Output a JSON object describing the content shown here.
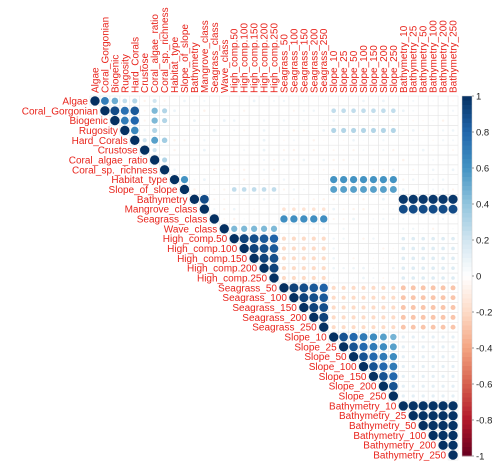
{
  "chart_data": {
    "type": "heatmap",
    "style": "circle-correlogram (upper triangle)",
    "title": "",
    "variables": [
      "Algae",
      "Coral_Gorgonian",
      "Biogenic",
      "Rugosity",
      "Hard_Corals",
      "Crustose",
      "Coral_algae_ratio",
      "Coral_sp._richness",
      "Habitat_type",
      "Slope_of_slope",
      "Bathymetry",
      "Mangrove_class",
      "Seagrass_class",
      "Wave_class",
      "High_comp.50",
      "High_comp.100",
      "High_comp.150",
      "High_comp.200",
      "High_comp.250",
      "Seagrass_50",
      "Seagrass_100",
      "Seagrass_150",
      "Seagrass_200",
      "Seagrass_250",
      "Slope_10",
      "Slope_25",
      "Slope_50",
      "Slope_100",
      "Slope_150",
      "Slope_200",
      "Slope_250",
      "Bathymetry_10",
      "Bathymetry_25",
      "Bathymetry_50",
      "Bathymetry_100",
      "Bathymetry_200",
      "Bathymetry_250"
    ],
    "color_scale": {
      "range": [
        -1,
        1
      ],
      "ticks": [
        "1",
        "0.8",
        "0.6",
        "0.4",
        "0.2",
        "0",
        "-0.2",
        "-0.4",
        "-0.6",
        "-0.8",
        "-1"
      ],
      "colors": [
        "#67001f",
        "#b2182b",
        "#d6604d",
        "#f4a582",
        "#fddbc7",
        "#ffffff",
        "#d1e5f0",
        "#92c5de",
        "#4393c3",
        "#2166ac",
        "#053061"
      ]
    },
    "correlations_summary": [
      {
        "a": "Algae",
        "b": "Coral_Gorgonian",
        "r": 0.7
      },
      {
        "a": "Algae",
        "b": "Biogenic",
        "r": 0.5
      },
      {
        "a": "Coral_Gorgonian",
        "b": "Biogenic",
        "r": 0.9
      },
      {
        "a": "Coral_Gorgonian",
        "b": "Rugosity",
        "r": 0.75
      },
      {
        "a": "Coral_Gorgonian",
        "b": "Hard_Corals",
        "r": 0.85
      },
      {
        "a": "Biogenic",
        "b": "Rugosity",
        "r": 0.7
      },
      {
        "a": "Biogenic",
        "b": "Hard_Corals",
        "r": 0.8
      },
      {
        "a": "Rugosity",
        "b": "Hard_Corals",
        "r": 0.65
      },
      {
        "a": "Habitat_type",
        "b": "Slope_of_slope",
        "r": 0.6
      },
      {
        "a": "Bathymetry",
        "b": "Bathymetry_10..250",
        "r": 0.97
      },
      {
        "a": "Mangrove_class",
        "b": "Bathymetry_10..250",
        "r": 0.9
      },
      {
        "a": "Seagrass_class",
        "b": "Seagrass_50..250",
        "r": 0.65
      },
      {
        "a": "Wave_class",
        "b": "High_comp.50..250",
        "r": 0.6
      },
      {
        "a": "High_comp.50..250",
        "b": "High_comp.50..250",
        "r": 0.92
      },
      {
        "a": "Seagrass_50..250",
        "b": "Seagrass_50..250",
        "r": 0.93
      },
      {
        "a": "Slope_10..250",
        "b": "Slope_10..250",
        "r": 0.88
      },
      {
        "a": "Bathymetry_10..250",
        "b": "Bathymetry_10..250",
        "r": 0.99
      },
      {
        "a": "Seagrass_50..250",
        "b": "Slope / Bathymetry",
        "r": -0.25
      },
      {
        "a": "High_comp.50..250",
        "b": "Seagrass_50..250",
        "r": -0.2
      }
    ]
  }
}
